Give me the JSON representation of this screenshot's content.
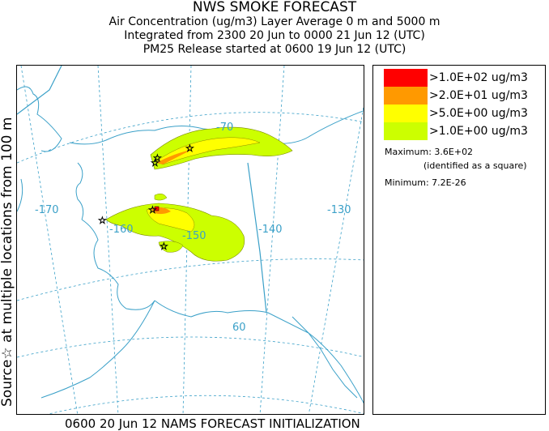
{
  "header": {
    "title": "NWS SMOKE FORECAST",
    "line2": "Air Concentration (ug/m3) Layer Average    0 m and  5000 m",
    "line3": "Integrated from 2300 20 Jun to 0000 21 Jun 12 (UTC)",
    "line4": "PM25 Release started at 0600 19 Jun 12 (UTC)"
  },
  "side_label": "Source☆ at multiple locations   from   100 m",
  "footer": "0600 20 Jun 12 NAMS FORECAST INITIALIZATION",
  "legend": {
    "items": [
      {
        "label": ">1.0E+02 ug/m3",
        "color": "#ff0000"
      },
      {
        "label": ">2.0E+01 ug/m3",
        "color": "#ff9900"
      },
      {
        "label": ">5.0E+00 ug/m3",
        "color": "#ffff00"
      },
      {
        "label": ">1.0E+00 ug/m3",
        "color": "#ccff00"
      }
    ],
    "maximum": "Maximum: 3.6E+02",
    "maximum_note": "(identified as a square)",
    "minimum": "Minimum: 7.2E-26"
  },
  "map": {
    "grid_labels": [
      "-170",
      "-160",
      "-150",
      "-140",
      "-130",
      "-70",
      "60"
    ],
    "colors": {
      "coast": "#3aa0c8",
      "grid": "#3aa0c8",
      "plume_outer": "#ccff00",
      "plume_mid": "#ffff00",
      "plume_inner": "#ff9900",
      "plume_max": "#ff0000"
    }
  }
}
